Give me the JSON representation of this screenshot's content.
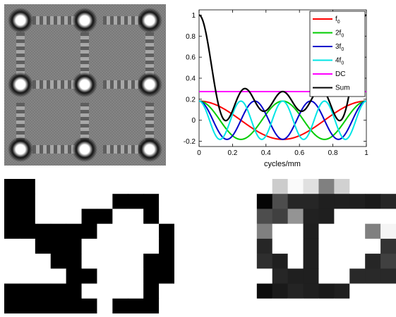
{
  "chart_data": {
    "type": "line",
    "xlabel": "cycles/mm",
    "ylabel": "",
    "xlim": [
      0,
      1
    ],
    "ylim": [
      -0.25,
      1.05
    ],
    "xticks": [
      "0",
      "0.2",
      "0.4",
      "0.6",
      "0.8",
      "1"
    ],
    "yticks": [
      "-0.2",
      "0",
      "0.2",
      "0.4",
      "0.6",
      "0.8",
      "1"
    ],
    "legend_position": "top-right",
    "components": {
      "dc": 0.273,
      "amp_fundamental": 0.091,
      "amp_harmonics": 0.182
    },
    "series": [
      {
        "name": "f0",
        "color": "#ff0000",
        "harmonic": 1
      },
      {
        "name": "2f0",
        "color": "#00cc00",
        "harmonic": 2
      },
      {
        "name": "3f0",
        "color": "#0000cc",
        "harmonic": 3
      },
      {
        "name": "4f0",
        "color": "#00e5e5",
        "harmonic": 4
      },
      {
        "name": "DC",
        "color": "#ff00ff",
        "harmonic": 0
      },
      {
        "name": "Sum",
        "color": "#000000",
        "harmonic": -1
      }
    ]
  },
  "legend": {
    "labels": [
      {
        "base": "f",
        "sub": "0"
      },
      {
        "base": "2f",
        "sub": "0"
      },
      {
        "base": "3f",
        "sub": "0"
      },
      {
        "base": "4f",
        "sub": "0"
      },
      {
        "base": "DC",
        "sub": ""
      },
      {
        "base": "Sum",
        "sub": ""
      }
    ]
  },
  "binary_pattern": {
    "rows": [
      [
        1,
        1,
        0,
        0,
        0,
        0,
        0,
        0,
        0,
        0,
        0
      ],
      [
        1,
        1,
        0,
        0,
        0,
        0,
        0,
        1,
        1,
        1,
        0
      ],
      [
        1,
        1,
        0,
        0,
        0,
        1,
        1,
        0,
        0,
        1,
        0
      ],
      [
        1,
        1,
        1,
        1,
        1,
        1,
        0,
        0,
        0,
        0,
        1
      ],
      [
        0,
        0,
        1,
        1,
        1,
        0,
        0,
        0,
        0,
        0,
        1
      ],
      [
        0,
        0,
        0,
        1,
        1,
        0,
        0,
        0,
        0,
        1,
        1
      ],
      [
        0,
        0,
        0,
        0,
        1,
        1,
        0,
        0,
        0,
        1,
        1
      ],
      [
        1,
        1,
        1,
        1,
        1,
        0,
        0,
        0,
        0,
        1,
        0
      ],
      [
        1,
        1,
        1,
        1,
        1,
        1,
        0,
        1,
        1,
        1,
        0
      ]
    ]
  },
  "gray_pattern": {
    "rows": [
      [
        1,
        1,
        1,
        0.8,
        0.98,
        0.88,
        0.5,
        0.82,
        1,
        1,
        1
      ],
      [
        1,
        1,
        0.02,
        0.3,
        0.15,
        0.15,
        0.12,
        0.12,
        0.12,
        0.1,
        0.15
      ],
      [
        1,
        1,
        0.3,
        0.25,
        0.58,
        0.13,
        0.12,
        1,
        1,
        1,
        1
      ],
      [
        1,
        1,
        0.5,
        1,
        1,
        0.12,
        1,
        1,
        1,
        0.5,
        0.96
      ],
      [
        1,
        1,
        0.15,
        1,
        1,
        0.12,
        1,
        1,
        1,
        1,
        0.2
      ],
      [
        1,
        1,
        0.18,
        0.12,
        1,
        0.12,
        1,
        1,
        1,
        0.15,
        0.25
      ],
      [
        1,
        1,
        1,
        0.15,
        0.12,
        0.12,
        1,
        1,
        0.16,
        0.16,
        0.16
      ],
      [
        1,
        1,
        0.05,
        0.1,
        0.14,
        0.12,
        0.1,
        0.12,
        1,
        1,
        1
      ],
      [
        1,
        1,
        1,
        1,
        1,
        1,
        1,
        1,
        1,
        1,
        1
      ]
    ]
  }
}
